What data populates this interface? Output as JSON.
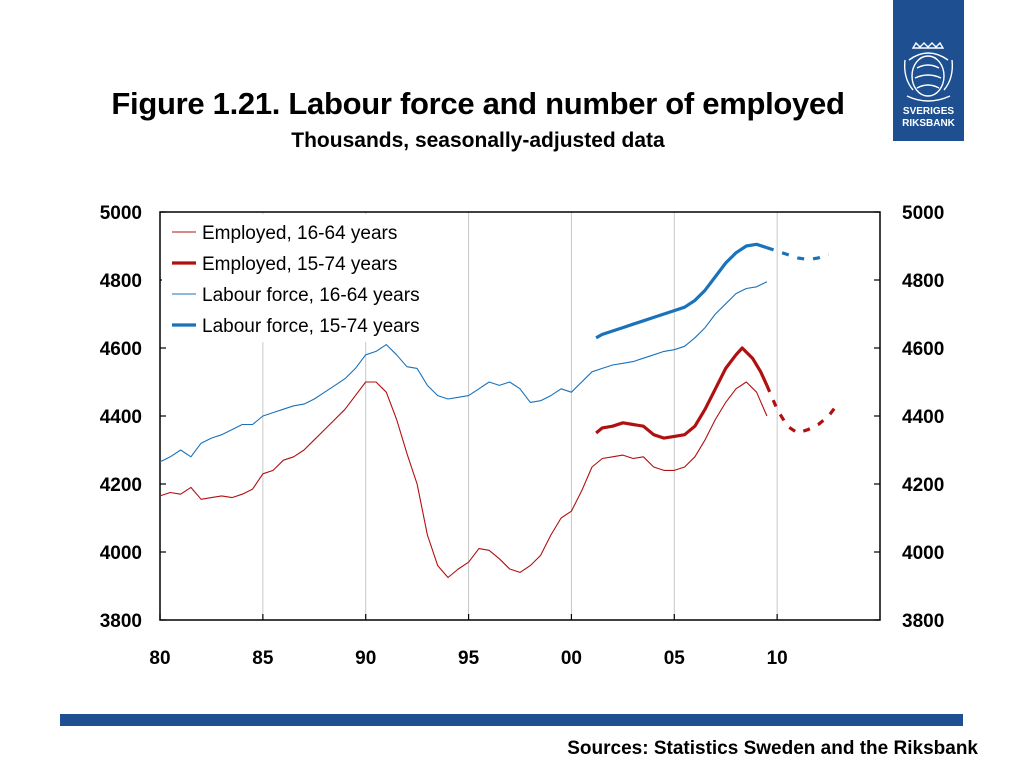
{
  "title": "Figure 1.21. Labour force and number of employed",
  "subtitle": "Thousands, seasonally-adjusted data",
  "logo": {
    "line1": "SVERIGES",
    "line2": "RIKSBANK",
    "icon": "riksbank-crest-icon"
  },
  "source": "Sources: Statistics Sweden and the Riksbank",
  "colors": {
    "accent": "#1d4f91",
    "employed": "#b01010",
    "labour": "#1a72bb"
  },
  "chart_data": {
    "type": "line",
    "title": "Figure 1.21. Labour force and number of employed",
    "subtitle": "Thousands, seasonally-adjusted data",
    "x_ticks": [
      1980,
      1985,
      1990,
      1995,
      2000,
      2005,
      2010
    ],
    "x_tick_labels": [
      "80",
      "85",
      "90",
      "95",
      "00",
      "05",
      "10"
    ],
    "xlim": [
      1980,
      2015
    ],
    "y_ticks": [
      3800,
      4000,
      4200,
      4400,
      4600,
      4800,
      5000
    ],
    "y_tick_labels": [
      "3800",
      "4000",
      "4200",
      "4400",
      "4600",
      "4800",
      "5000"
    ],
    "ylim": [
      3800,
      5000
    ],
    "y2_tick_labels": [
      "3800",
      "4000",
      "4200",
      "4400",
      "4600",
      "4800",
      "5000"
    ],
    "grid": "vertical",
    "legend_position": "top-left",
    "series": [
      {
        "name": "Employed, 16-64 years",
        "color": "#b01010",
        "width": "thin",
        "points": [
          [
            1980,
            4165
          ],
          [
            1980.5,
            4175
          ],
          [
            1981,
            4170
          ],
          [
            1981.5,
            4190
          ],
          [
            1982,
            4155
          ],
          [
            1982.5,
            4160
          ],
          [
            1983,
            4165
          ],
          [
            1983.5,
            4160
          ],
          [
            1984,
            4170
          ],
          [
            1984.5,
            4185
          ],
          [
            1985,
            4230
          ],
          [
            1985.5,
            4240
          ],
          [
            1986,
            4270
          ],
          [
            1986.5,
            4280
          ],
          [
            1987,
            4300
          ],
          [
            1987.5,
            4330
          ],
          [
            1988,
            4360
          ],
          [
            1988.5,
            4390
          ],
          [
            1989,
            4420
          ],
          [
            1989.5,
            4460
          ],
          [
            1990,
            4500
          ],
          [
            1990.5,
            4500
          ],
          [
            1991,
            4470
          ],
          [
            1991.5,
            4390
          ],
          [
            1992,
            4290
          ],
          [
            1992.5,
            4200
          ],
          [
            1993,
            4050
          ],
          [
            1993.5,
            3960
          ],
          [
            1994,
            3925
          ],
          [
            1994.5,
            3950
          ],
          [
            1995,
            3970
          ],
          [
            1995.5,
            4010
          ],
          [
            1996,
            4005
          ],
          [
            1996.5,
            3980
          ],
          [
            1997,
            3950
          ],
          [
            1997.5,
            3940
          ],
          [
            1998,
            3960
          ],
          [
            1998.5,
            3990
          ],
          [
            1999,
            4050
          ],
          [
            1999.5,
            4100
          ],
          [
            2000,
            4120
          ],
          [
            2000.5,
            4180
          ],
          [
            2001,
            4250
          ],
          [
            2001.5,
            4275
          ],
          [
            2002,
            4280
          ],
          [
            2002.5,
            4285
          ],
          [
            2003,
            4275
          ],
          [
            2003.5,
            4280
          ],
          [
            2004,
            4250
          ],
          [
            2004.5,
            4240
          ],
          [
            2005,
            4240
          ],
          [
            2005.5,
            4250
          ],
          [
            2006,
            4280
          ],
          [
            2006.5,
            4330
          ],
          [
            2007,
            4390
          ],
          [
            2007.5,
            4440
          ],
          [
            2008,
            4480
          ],
          [
            2008.5,
            4500
          ],
          [
            2009,
            4470
          ],
          [
            2009.5,
            4400
          ]
        ]
      },
      {
        "name": "Employed, 15-74 years",
        "color": "#b01010",
        "width": "thick",
        "points": [
          [
            2001.2,
            4350
          ],
          [
            2001.5,
            4365
          ],
          [
            2002,
            4370
          ],
          [
            2002.5,
            4380
          ],
          [
            2003,
            4375
          ],
          [
            2003.5,
            4370
          ],
          [
            2004,
            4345
          ],
          [
            2004.5,
            4335
          ],
          [
            2005,
            4340
          ],
          [
            2005.5,
            4345
          ],
          [
            2006,
            4370
          ],
          [
            2006.5,
            4420
          ],
          [
            2007,
            4480
          ],
          [
            2007.5,
            4540
          ],
          [
            2008,
            4580
          ],
          [
            2008.3,
            4600
          ],
          [
            2008.8,
            4570
          ],
          [
            2009.2,
            4530
          ],
          [
            2009.5,
            4490
          ]
        ],
        "forecast_points": [
          [
            2009.5,
            4490
          ],
          [
            2010,
            4420
          ],
          [
            2010.5,
            4370
          ],
          [
            2011,
            4350
          ],
          [
            2011.5,
            4360
          ],
          [
            2012,
            4375
          ],
          [
            2012.5,
            4400
          ],
          [
            2013,
            4440
          ]
        ]
      },
      {
        "name": "Labour force, 16-64 years",
        "color": "#1a72bb",
        "width": "thin",
        "points": [
          [
            1980,
            4265
          ],
          [
            1980.5,
            4280
          ],
          [
            1981,
            4300
          ],
          [
            1981.5,
            4280
          ],
          [
            1982,
            4320
          ],
          [
            1982.5,
            4335
          ],
          [
            1983,
            4345
          ],
          [
            1983.5,
            4360
          ],
          [
            1984,
            4375
          ],
          [
            1984.5,
            4375
          ],
          [
            1985,
            4400
          ],
          [
            1985.5,
            4410
          ],
          [
            1986,
            4420
          ],
          [
            1986.5,
            4430
          ],
          [
            1987,
            4435
          ],
          [
            1987.5,
            4450
          ],
          [
            1988,
            4470
          ],
          [
            1988.5,
            4490
          ],
          [
            1989,
            4510
          ],
          [
            1989.5,
            4540
          ],
          [
            1990,
            4580
          ],
          [
            1990.5,
            4590
          ],
          [
            1991,
            4610
          ],
          [
            1991.5,
            4580
          ],
          [
            1992,
            4545
          ],
          [
            1992.5,
            4540
          ],
          [
            1993,
            4490
          ],
          [
            1993.5,
            4460
          ],
          [
            1994,
            4450
          ],
          [
            1994.5,
            4455
          ],
          [
            1995,
            4460
          ],
          [
            1995.5,
            4480
          ],
          [
            1996,
            4500
          ],
          [
            1996.5,
            4490
          ],
          [
            1997,
            4500
          ],
          [
            1997.5,
            4480
          ],
          [
            1998,
            4440
          ],
          [
            1998.5,
            4445
          ],
          [
            1999,
            4460
          ],
          [
            1999.5,
            4480
          ],
          [
            2000,
            4470
          ],
          [
            2000.5,
            4500
          ],
          [
            2001,
            4530
          ],
          [
            2001.5,
            4540
          ],
          [
            2002,
            4550
          ],
          [
            2002.5,
            4555
          ],
          [
            2003,
            4560
          ],
          [
            2003.5,
            4570
          ],
          [
            2004,
            4580
          ],
          [
            2004.5,
            4590
          ],
          [
            2005,
            4595
          ],
          [
            2005.5,
            4605
          ],
          [
            2006,
            4630
          ],
          [
            2006.5,
            4660
          ],
          [
            2007,
            4700
          ],
          [
            2007.5,
            4730
          ],
          [
            2008,
            4760
          ],
          [
            2008.5,
            4775
          ],
          [
            2009,
            4780
          ],
          [
            2009.5,
            4795
          ]
        ]
      },
      {
        "name": "Labour force, 15-74 years",
        "color": "#1a72bb",
        "width": "thick",
        "points": [
          [
            2001.2,
            4630
          ],
          [
            2001.5,
            4640
          ],
          [
            2002,
            4650
          ],
          [
            2002.5,
            4660
          ],
          [
            2003,
            4670
          ],
          [
            2003.5,
            4680
          ],
          [
            2004,
            4690
          ],
          [
            2004.5,
            4700
          ],
          [
            2005,
            4710
          ],
          [
            2005.5,
            4720
          ],
          [
            2006,
            4740
          ],
          [
            2006.5,
            4770
          ],
          [
            2007,
            4810
          ],
          [
            2007.5,
            4850
          ],
          [
            2008,
            4880
          ],
          [
            2008.5,
            4900
          ],
          [
            2009,
            4905
          ],
          [
            2009.5,
            4895
          ]
        ],
        "forecast_points": [
          [
            2009.5,
            4895
          ],
          [
            2010,
            4885
          ],
          [
            2010.5,
            4875
          ],
          [
            2011,
            4865
          ],
          [
            2011.5,
            4860
          ],
          [
            2012,
            4865
          ],
          [
            2012.5,
            4875
          ]
        ]
      }
    ]
  }
}
